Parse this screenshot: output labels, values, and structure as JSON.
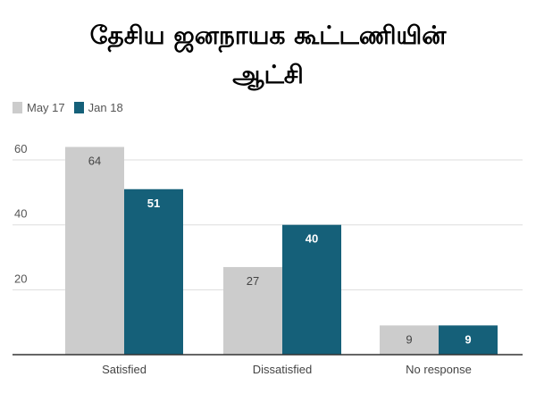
{
  "header": {
    "title_line1": "தேசிய ஜனநாயக கூட்டணியின்",
    "title_line2": "ஆட்சி"
  },
  "colors": {
    "series_1": "#cccccc",
    "series_2": "#156079",
    "label_on_light": "#444444",
    "label_on_dark": "#ffffff",
    "gridline": "#dddddd",
    "baseline": "#333333"
  },
  "chart_data": {
    "type": "bar",
    "categories": [
      "Satisfied",
      "Dissatisfied",
      "No response"
    ],
    "series": [
      {
        "name": "May 17",
        "values": [
          64,
          27,
          9
        ]
      },
      {
        "name": "Jan 18",
        "values": [
          51,
          40,
          9
        ]
      }
    ],
    "yticks": [
      20,
      40,
      60
    ],
    "ylim": [
      0,
      68
    ],
    "legend_position": "top-left",
    "grid": true,
    "data_labels": true
  }
}
